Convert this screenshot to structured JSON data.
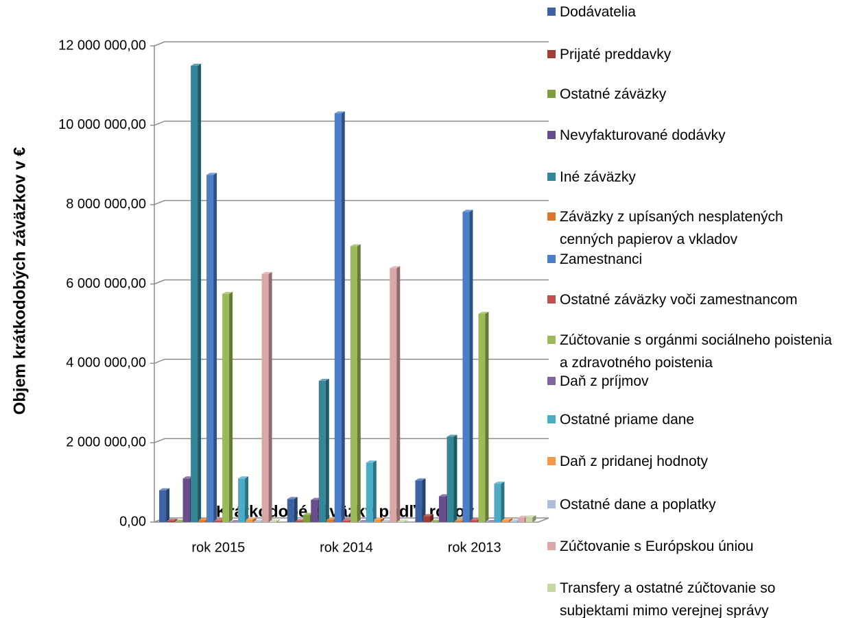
{
  "chart_data": {
    "type": "bar3d",
    "x_label": "Krátkodobé záväzky podľa rokov",
    "y_label": "Objem krátkodobých záväzkov v €",
    "categories": [
      "rok 2015",
      "rok 2014",
      "rok 2013"
    ],
    "ylim": [
      0,
      12000000
    ],
    "yticks": [
      {
        "value": 0,
        "label": "0,00"
      },
      {
        "value": 2000000,
        "label": "2 000 000,00"
      },
      {
        "value": 4000000,
        "label": "4 000 000,00"
      },
      {
        "value": 6000000,
        "label": "6 000 000,00"
      },
      {
        "value": 8000000,
        "label": "8 000 000,00"
      },
      {
        "value": 10000000,
        "label": "10 000 000,00"
      },
      {
        "value": 12000000,
        "label": "12 000 000,00"
      }
    ],
    "grid": true,
    "legend": "right",
    "series": [
      {
        "name": "Dodávatelia",
        "color": "#3c64a4",
        "values": [
          800000,
          580000,
          1050000
        ]
      },
      {
        "name": "Prijaté preddavky",
        "color": "#a33b36",
        "values": [
          30000,
          20000,
          150000
        ]
      },
      {
        "name": "Ostatné záväzky",
        "color": "#7f9f3f",
        "values": [
          10000,
          180000,
          10000
        ]
      },
      {
        "name": "Nevyfakturované dodávky",
        "color": "#6a4d8d",
        "values": [
          1100000,
          560000,
          650000
        ]
      },
      {
        "name": "Iné záväzky",
        "color": "#338799",
        "values": [
          11500000,
          3560000,
          2150000
        ]
      },
      {
        "name": "Záväzky z upísaných nesplatených cenných papierov a vkladov",
        "color": "#d9782c",
        "values": [
          50000,
          60000,
          30000
        ]
      },
      {
        "name": "Zamestnanci",
        "color": "#4a7ec8",
        "values": [
          8750000,
          10300000,
          7820000
        ]
      },
      {
        "name": "Ostatné záväzky voči zamestnancom",
        "color": "#c0504d",
        "values": [
          40000,
          40000,
          50000
        ]
      },
      {
        "name": "Zúčtovanie s orgánmi sociálneho poistenia a zdravotného poistenia",
        "color": "#9bbb59",
        "values": [
          5750000,
          6950000,
          5250000
        ]
      },
      {
        "name": "Daň z príjmov",
        "color": "#8064a2",
        "values": [
          0,
          0,
          0
        ]
      },
      {
        "name": "Ostatné priame dane",
        "color": "#4bacc6",
        "values": [
          1100000,
          1500000,
          970000
        ]
      },
      {
        "name": "Daň z pridanej hodnoty",
        "color": "#f79646",
        "values": [
          60000,
          60000,
          50000
        ]
      },
      {
        "name": "Ostatné dane a poplatky",
        "color": "#a9bcd9",
        "values": [
          10000,
          10000,
          20000
        ]
      },
      {
        "name": "Zúčtovanie s Európskou úniou",
        "color": "#dba6a6",
        "values": [
          6250000,
          6400000,
          110000
        ]
      },
      {
        "name": "Transfery a ostatné zúčtovanie so subjektami mimo verejnej správy",
        "color": "#c4d9a3",
        "values": [
          20000,
          10000,
          120000
        ]
      }
    ]
  }
}
